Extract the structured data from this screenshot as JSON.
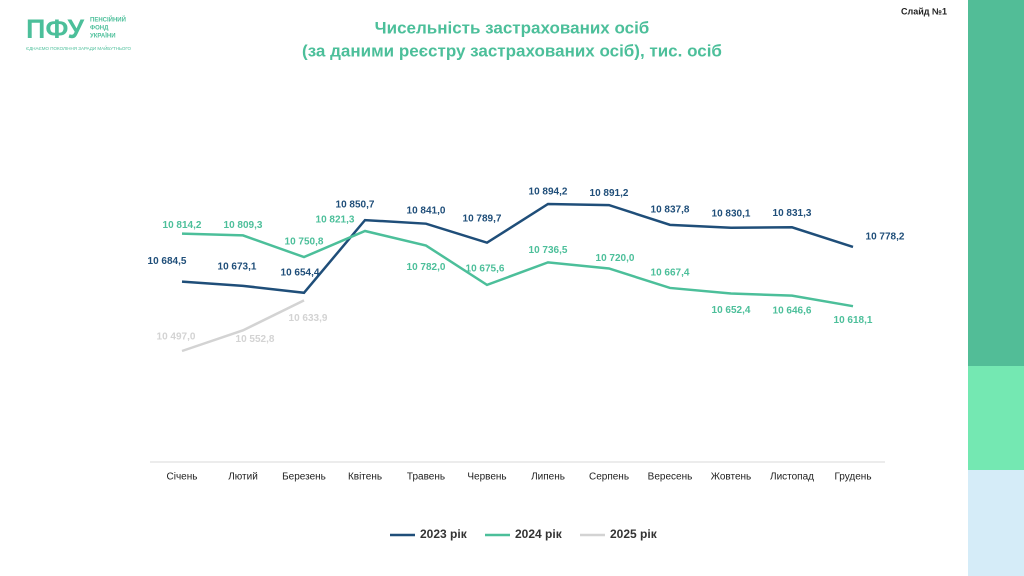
{
  "slide": {
    "logo": "ПФУ",
    "logo_text": [
      "ПЕНСІЙНИЙ",
      "ФОНД",
      "УКРАЇНИ"
    ],
    "tagline": "ЄДНАЄМО ПОКОЛІННЯ ЗАРАДИ МАЙБУТНЬОГО",
    "slide_number": "Слайд №1"
  },
  "chart_data": {
    "type": "line",
    "title": "Чисельність застрахованих осіб",
    "subtitle": "(за даними реєстру застрахованих осіб), тис. осіб",
    "categories": [
      "Січень",
      "Лютий",
      "Березень",
      "Квітень",
      "Травень",
      "Червень",
      "Липень",
      "Серпень",
      "Вересень",
      "Жовтень",
      "Листопад",
      "Грудень"
    ],
    "series": [
      {
        "name": "2023 рік",
        "color": "#1f4e79",
        "values": [
          10684.5,
          10673.1,
          10654.4,
          10850.7,
          10841.0,
          10789.7,
          10894.2,
          10891.2,
          10837.8,
          10830.1,
          10831.3,
          10778.2
        ],
        "value_labels": [
          "10 684,5",
          "10 673,1",
          "10 654,4",
          "10 850,7",
          "10 841,0",
          "10 789,7",
          "10 894,2",
          "10 891,2",
          "10 837,8",
          "10 830,1",
          "10 831,3",
          "10 778,2"
        ]
      },
      {
        "name": "2024 рік",
        "color": "#4cbf9a",
        "values": [
          10814.2,
          10809.3,
          10750.8,
          10821.3,
          10782.0,
          10675.6,
          10736.5,
          10720.0,
          10667.4,
          10652.4,
          10646.6,
          10618.1
        ],
        "value_labels": [
          "10 814,2",
          "10 809,3",
          "10 750,8",
          "10 821,3",
          "10 782,0",
          "10 675,6",
          "10 736,5",
          "10 720,0",
          "10 667,4",
          "10 652,4",
          "10 646,6",
          "10 618,1"
        ]
      },
      {
        "name": "2025 рік",
        "color": "#d3d3d3",
        "values": [
          10497.0,
          10552.8,
          10633.9,
          null,
          null,
          null,
          null,
          null,
          null,
          null,
          null,
          null
        ],
        "value_labels": [
          "10 497,0",
          "10 552,8",
          "10 633,9",
          null,
          null,
          null,
          null,
          null,
          null,
          null,
          null,
          null
        ]
      }
    ],
    "legend": "bottom"
  }
}
